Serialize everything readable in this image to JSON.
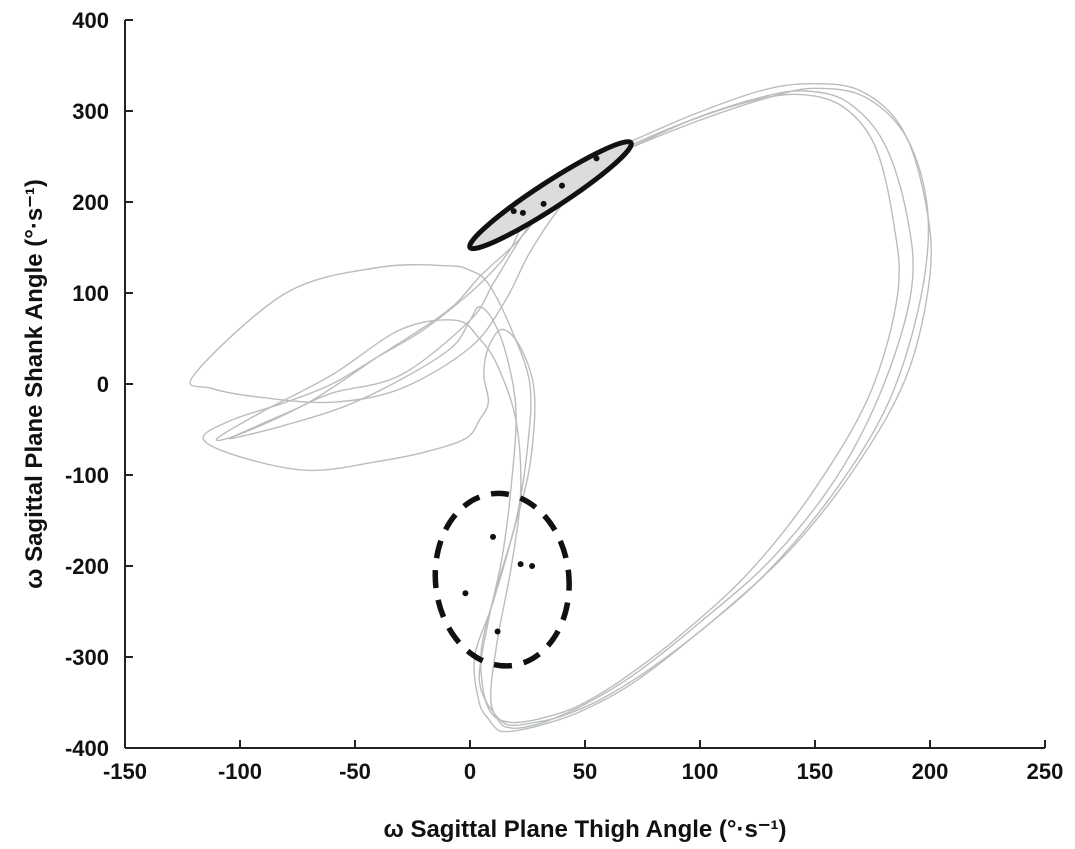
{
  "chart_data": {
    "type": "line",
    "xlabel": "ω Sagittal Plane Thigh Angle (°·s⁻¹)",
    "ylabel": "ω Sagittal Plane Shank Angle (°·s⁻¹)",
    "xlim": [
      -150,
      250
    ],
    "ylim": [
      -400,
      400
    ],
    "x_ticks": [
      "-150",
      "-100",
      "-50",
      "0",
      "50",
      "100",
      "150",
      "200",
      "250"
    ],
    "y_ticks": [
      "400",
      "300",
      "200",
      "100",
      "0",
      "-100",
      "-200",
      "-300",
      "-400"
    ],
    "grid": false,
    "legend": "none",
    "colors": {
      "traces": "#b9bdbb",
      "markers": "#111111",
      "solid_ellipse_fill": "#dcdcdc"
    },
    "series": [
      {
        "style": "trace",
        "x": [
          70,
          100,
          130,
          150,
          172,
          190,
          199,
          196,
          182,
          158,
          128,
          96,
          70,
          48,
          32,
          22,
          16,
          12,
          8,
          4,
          2,
          10,
          18,
          26,
          28,
          22,
          14,
          8,
          6,
          8,
          4,
          -2,
          -20,
          -40,
          -70,
          -100,
          -116,
          -104,
          -80,
          -60,
          -40,
          -20,
          0,
          12,
          18,
          22,
          30,
          40
        ],
        "y": [
          260,
          290,
          315,
          325,
          315,
          270,
          190,
          95,
          -20,
          -120,
          -210,
          -280,
          -330,
          -360,
          -374,
          -380,
          -382,
          -380,
          -368,
          -350,
          -300,
          -240,
          -170,
          -90,
          -10,
          40,
          60,
          40,
          10,
          -20,
          -40,
          -60,
          -75,
          -85,
          -95,
          -80,
          -60,
          -40,
          -20,
          0,
          30,
          60,
          100,
          130,
          150,
          170,
          195,
          215
        ]
      },
      {
        "style": "trace",
        "x": [
          66,
          96,
          126,
          148,
          170,
          188,
          198,
          200,
          190,
          168,
          140,
          108,
          80,
          58,
          40,
          28,
          20,
          15,
          10,
          6,
          5,
          12,
          20,
          25,
          26,
          18,
          8,
          0,
          -10,
          -40,
          -80,
          -120,
          -112,
          -90,
          -60,
          -30,
          0,
          15,
          25,
          35,
          50
        ],
        "y": [
          262,
          295,
          322,
          330,
          322,
          280,
          200,
          120,
          10,
          -90,
          -180,
          -255,
          -310,
          -345,
          -365,
          -372,
          -375,
          -373,
          -360,
          -340,
          -290,
          -220,
          -150,
          -70,
          0,
          60,
          110,
          125,
          130,
          128,
          100,
          10,
          -5,
          -15,
          -20,
          -5,
          40,
          90,
          140,
          180,
          230
        ]
      },
      {
        "style": "trace",
        "x": [
          68,
          98,
          128,
          146,
          164,
          180,
          190,
          192,
          180,
          160,
          132,
          100,
          72,
          50,
          34,
          24,
          18,
          13,
          9,
          12,
          18,
          22,
          20,
          12,
          4,
          -6,
          -30,
          -60,
          -90,
          -110,
          -100,
          -70,
          -40,
          -10,
          5,
          20,
          30,
          45
        ],
        "y": [
          258,
          292,
          316,
          322,
          310,
          265,
          185,
          105,
          0,
          -100,
          -190,
          -262,
          -318,
          -352,
          -370,
          -377,
          -378,
          -372,
          -345,
          -280,
          -200,
          -120,
          -40,
          20,
          50,
          70,
          60,
          10,
          -30,
          -60,
          -55,
          -20,
          30,
          80,
          120,
          155,
          185,
          230
        ]
      },
      {
        "style": "trace",
        "x": [
          64,
          94,
          124,
          144,
          162,
          176,
          184,
          186,
          174,
          150,
          122,
          92,
          66,
          46,
          30,
          20,
          14,
          10,
          7,
          4,
          8,
          14,
          18,
          20,
          16,
          10,
          4,
          0,
          -8,
          -30,
          -55,
          -80,
          -104,
          -96,
          -78,
          -60,
          -30,
          0,
          10,
          22,
          32,
          48
        ],
        "y": [
          256,
          288,
          312,
          318,
          305,
          262,
          180,
          100,
          -10,
          -115,
          -205,
          -275,
          -325,
          -355,
          -368,
          -372,
          -370,
          -364,
          -350,
          -320,
          -260,
          -190,
          -110,
          -30,
          30,
          70,
          85,
          70,
          40,
          5,
          -25,
          -45,
          -60,
          -50,
          -30,
          -10,
          10,
          70,
          110,
          160,
          195,
          235
        ]
      },
      {
        "style": "ellipse-solid",
        "center": [
          33,
          208
        ],
        "semi_major_x_extent": 37,
        "note_points": "points"
      },
      {
        "style": "ellipse-dashed",
        "center": [
          14,
          -215
        ],
        "rx": 29,
        "ry": 95
      },
      {
        "style": "points-solid-region",
        "x": [
          19,
          23,
          32,
          40,
          55
        ],
        "y": [
          190,
          188,
          198,
          218,
          248
        ]
      },
      {
        "style": "points-dashed-region",
        "x": [
          10,
          22,
          27,
          -2,
          12
        ],
        "y": [
          -168,
          -198,
          -200,
          -230,
          -272
        ]
      }
    ]
  }
}
